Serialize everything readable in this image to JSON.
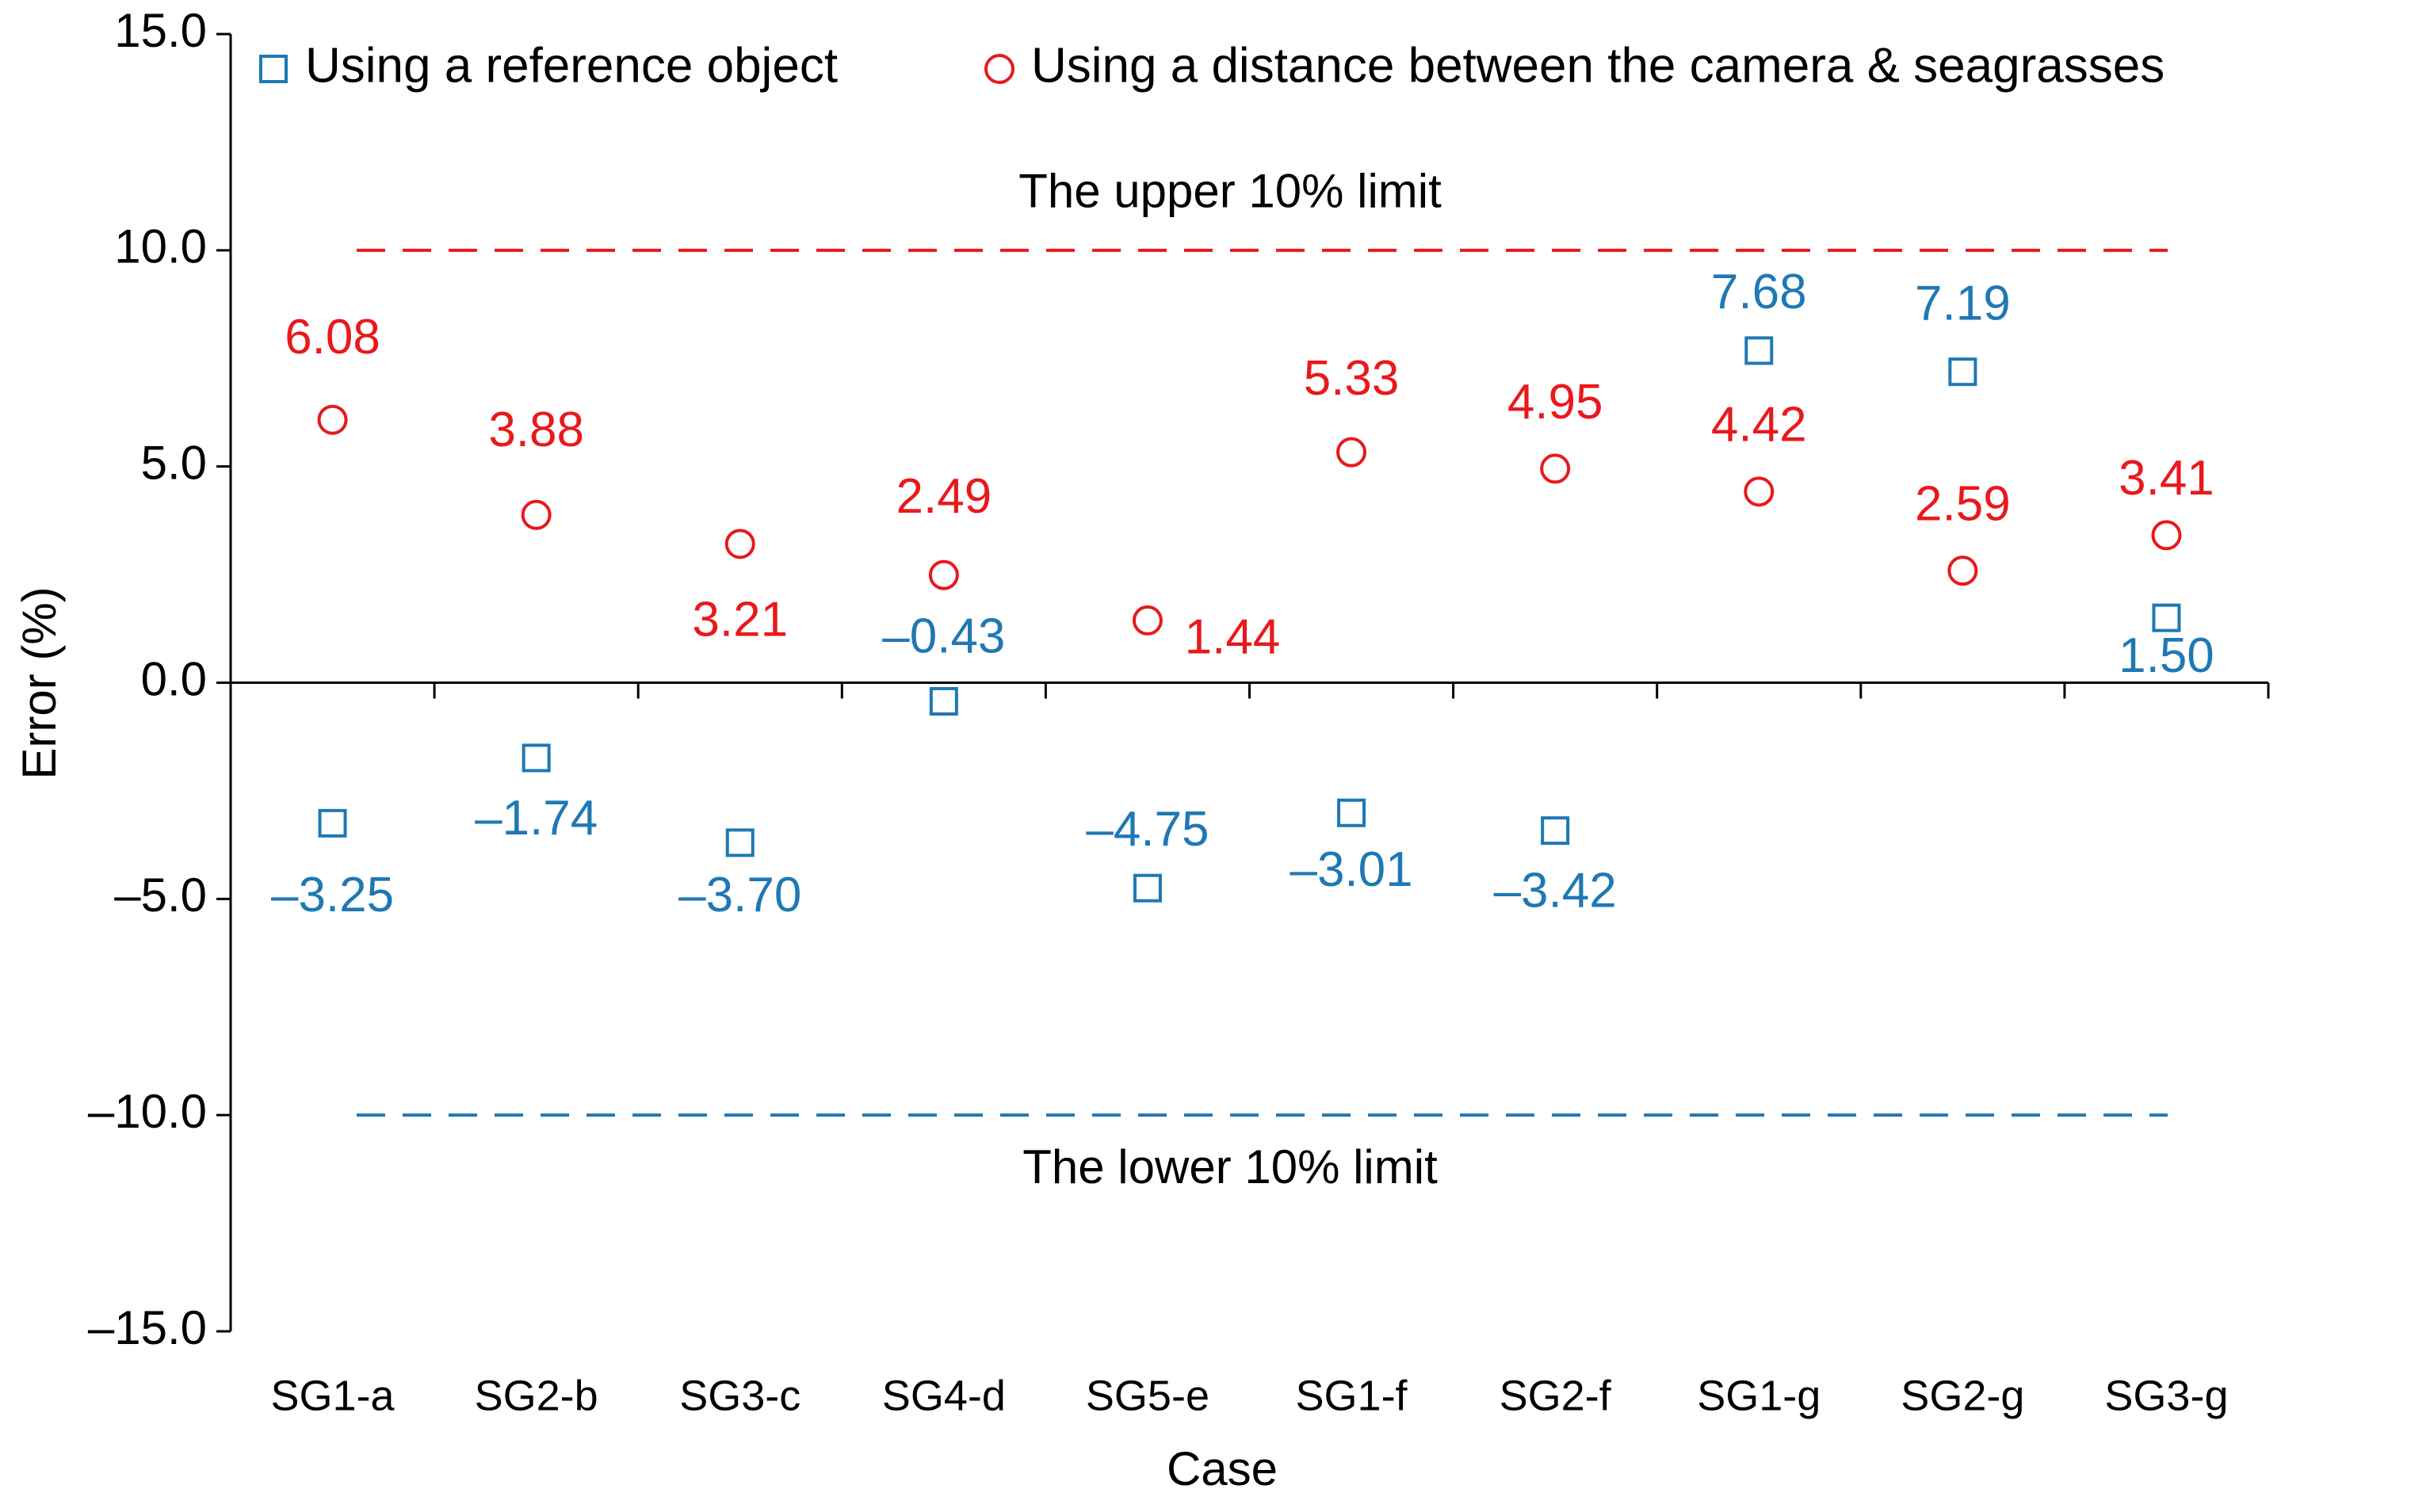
{
  "chart_data": {
    "type": "scatter",
    "x_label": "Case",
    "y_label": "Error (%)",
    "categories": [
      "SG1-a",
      "SG2-b",
      "SG3-c",
      "SG4-d",
      "SG5-e",
      "SG1-f",
      "SG2-f",
      "SG1-g",
      "SG2-g",
      "SG3-g"
    ],
    "series": [
      {
        "name": "Using a reference object",
        "color": "#1f78b4",
        "marker": "square",
        "values": [
          -3.25,
          -1.74,
          -3.7,
          -0.43,
          -4.75,
          -3.01,
          -3.42,
          7.68,
          7.19,
          1.5
        ],
        "value_labels": [
          "–3.25",
          "–1.74",
          "–3.70",
          "–0.43",
          "–4.75",
          "–3.01",
          "–3.42",
          "7.68",
          "7.19",
          "1.50"
        ]
      },
      {
        "name": "Using a distance between the camera & seagrasses",
        "color": "#e8191c",
        "marker": "circle",
        "values": [
          6.08,
          3.88,
          3.21,
          2.49,
          1.44,
          5.33,
          4.95,
          4.42,
          2.59,
          3.41
        ],
        "value_labels": [
          "6.08",
          "3.88",
          "3.21",
          "2.49",
          "1.44",
          "5.33",
          "4.95",
          "4.42",
          "2.59",
          "3.41"
        ]
      }
    ],
    "reference_lines": [
      {
        "value": 10,
        "label": "The upper 10% limit",
        "color": "#e8191c"
      },
      {
        "value": -10,
        "label": "The lower 10% limit",
        "color": "#1f78b4"
      }
    ],
    "ylim": [
      -15,
      15
    ],
    "yticks": [
      {
        "value": 15,
        "label": "15.0"
      },
      {
        "value": 10,
        "label": "10.0"
      },
      {
        "value": 5,
        "label": "5.0"
      },
      {
        "value": 0,
        "label": "0.0"
      },
      {
        "value": -5,
        "label": "–5.0"
      },
      {
        "value": -10,
        "label": "–10.0"
      },
      {
        "value": -15,
        "label": "–15.0"
      }
    ],
    "legend": "top"
  }
}
